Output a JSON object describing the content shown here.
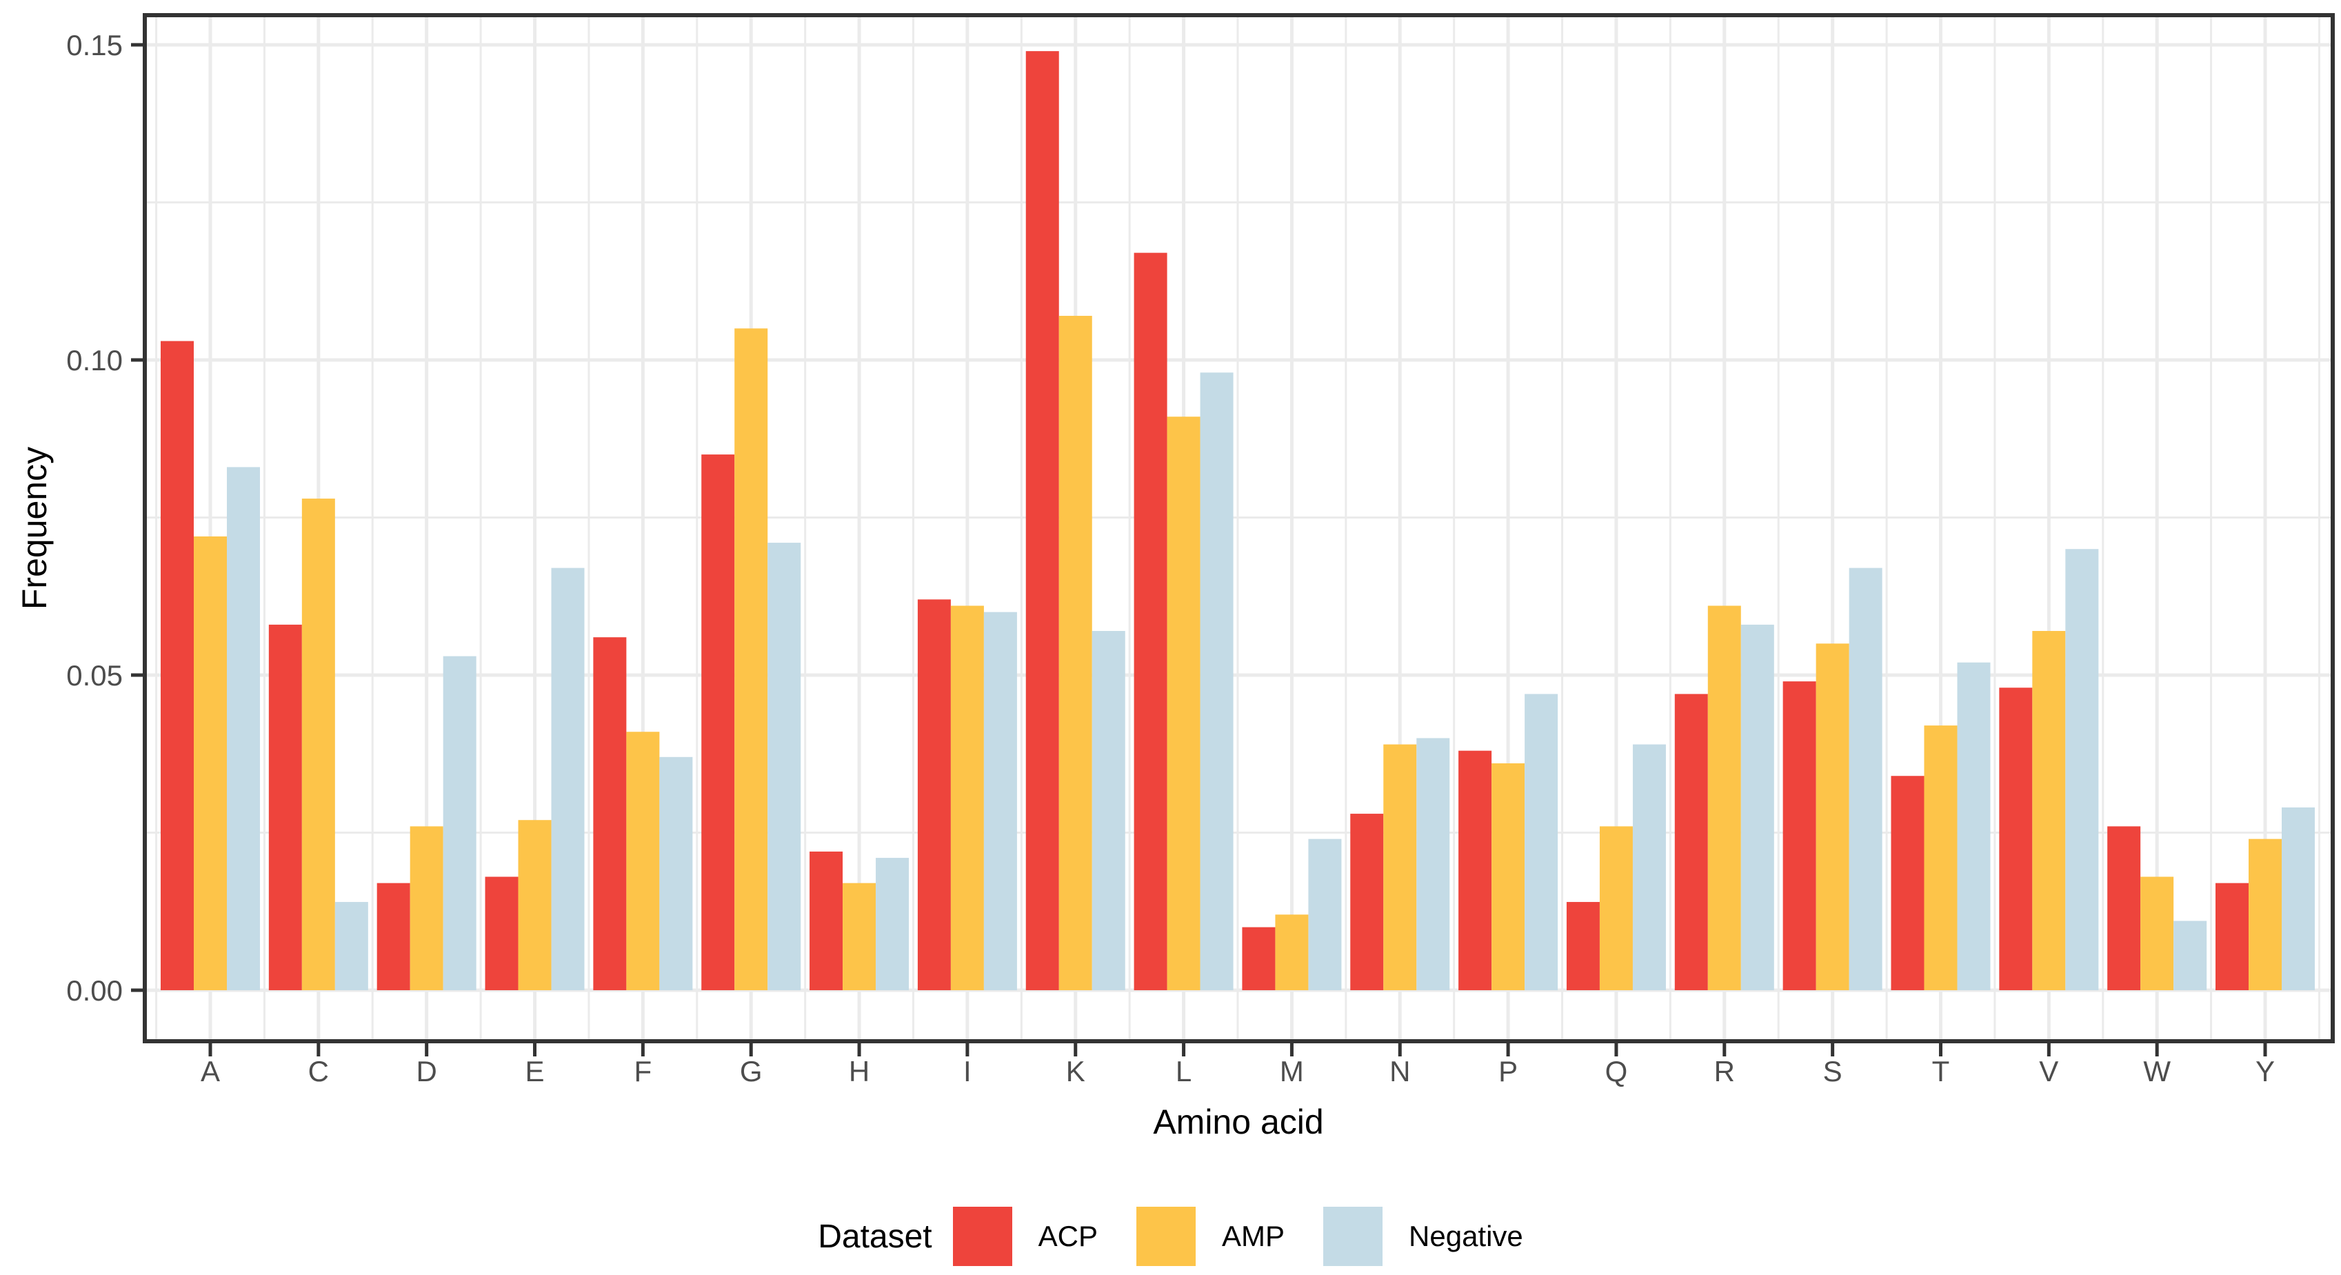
{
  "colors": {
    "acp": "#EE443C",
    "amp": "#FDC449",
    "negative": "#C4DBE6",
    "grid": "#EBEBEB",
    "axis": "#333333",
    "tick_text": "#4D4D4D",
    "title_text": "#000000",
    "background": "#FFFFFF"
  },
  "chart_data": {
    "type": "bar",
    "grouping": "dodged",
    "title": "",
    "xlabel": "Amino acid",
    "ylabel": "Frequency",
    "legend_title": "Dataset",
    "legend_position": "bottom",
    "grid": true,
    "categories": [
      "A",
      "C",
      "D",
      "E",
      "F",
      "G",
      "H",
      "I",
      "K",
      "L",
      "M",
      "N",
      "P",
      "Q",
      "R",
      "S",
      "T",
      "V",
      "W",
      "Y"
    ],
    "series": [
      {
        "name": "ACP",
        "color": "#EE443C",
        "values": [
          0.103,
          0.058,
          0.017,
          0.018,
          0.056,
          0.085,
          0.022,
          0.062,
          0.149,
          0.117,
          0.01,
          0.028,
          0.038,
          0.014,
          0.047,
          0.049,
          0.034,
          0.048,
          0.026,
          0.017
        ]
      },
      {
        "name": "AMP",
        "color": "#FDC449",
        "values": [
          0.072,
          0.078,
          0.026,
          0.027,
          0.041,
          0.105,
          0.017,
          0.061,
          0.107,
          0.091,
          0.012,
          0.039,
          0.036,
          0.026,
          0.061,
          0.055,
          0.042,
          0.057,
          0.018,
          0.024
        ]
      },
      {
        "name": "Negative",
        "color": "#C4DBE6",
        "values": [
          0.083,
          0.014,
          0.053,
          0.067,
          0.037,
          0.071,
          0.021,
          0.06,
          0.057,
          0.098,
          0.024,
          0.04,
          0.047,
          0.039,
          0.058,
          0.067,
          0.052,
          0.07,
          0.011,
          0.029
        ]
      }
    ],
    "y_ticks": [
      0,
      0.05,
      0.1,
      0.15
    ],
    "y_tick_labels": [
      "0.00",
      "0.05",
      "0.10",
      "0.15"
    ],
    "ylim": [
      0,
      0.157
    ]
  }
}
